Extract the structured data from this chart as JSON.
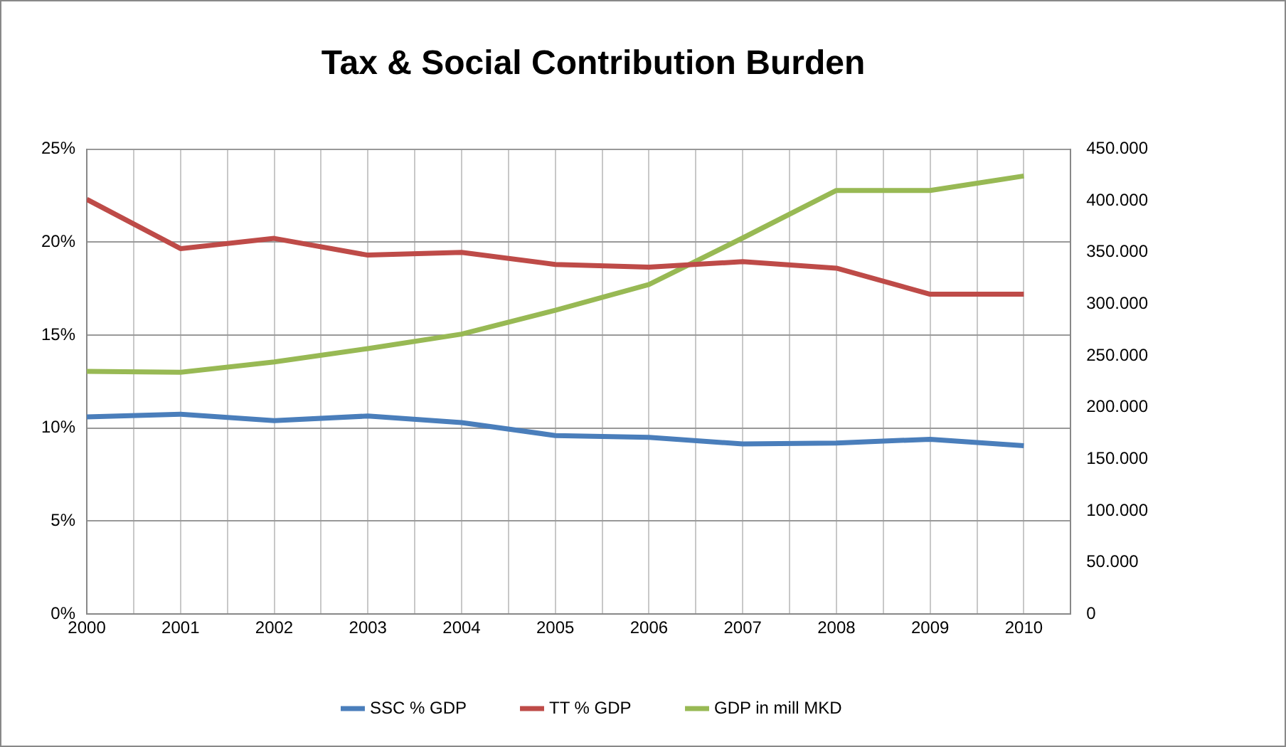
{
  "chart_data": {
    "type": "line",
    "title": "Tax & Social Contribution Burden",
    "x": [
      2000,
      2001,
      2002,
      2003,
      2004,
      2005,
      2006,
      2007,
      2008,
      2009,
      2010
    ],
    "series": [
      {
        "name": "SSC % GDP",
        "color": "#4a7ebb",
        "values": [
          10.6,
          10.75,
          10.4,
          10.65,
          10.3,
          9.6,
          9.5,
          9.15,
          9.2,
          9.4,
          9.05
        ]
      },
      {
        "name": "TT % GDP",
        "color": "#be4b48",
        "values": [
          22.3,
          19.65,
          20.2,
          19.3,
          19.45,
          18.8,
          18.65,
          18.95,
          18.6,
          17.2,
          17.2
        ]
      },
      {
        "name": "GDP in mill MKD",
        "color": "#98b954",
        "axis": "y2",
        "values": [
          235000,
          234000,
          244000,
          257000,
          271000,
          294000,
          319000,
          364000,
          410000,
          410000,
          424000
        ]
      }
    ],
    "xlim": [
      2000,
      2010.5
    ],
    "xticks": [
      2000,
      {
        "value": 2000.5,
        "label": null
      },
      2001,
      {
        "value": 2001.5,
        "label": null
      },
      2002,
      {
        "value": 2002.5,
        "label": null
      },
      2003,
      {
        "value": 2003.5,
        "label": null
      },
      2004,
      {
        "value": 2004.5,
        "label": null
      },
      2005,
      {
        "value": 2005.5,
        "label": null
      },
      2006,
      {
        "value": 2006.5,
        "label": null
      },
      2007,
      {
        "value": 2007.5,
        "label": null
      },
      2008,
      {
        "value": 2008.5,
        "label": null
      },
      2009,
      {
        "value": 2009.5,
        "label": null
      },
      2010,
      {
        "value": 2010.5,
        "label": null
      }
    ],
    "ylim": [
      0,
      25
    ],
    "yticks": [
      {
        "value": 0,
        "label": "0%"
      },
      {
        "value": 5,
        "label": "5%"
      },
      {
        "value": 10,
        "label": "10%"
      },
      {
        "value": 15,
        "label": "15%"
      },
      {
        "value": 20,
        "label": "20%"
      },
      {
        "value": 25,
        "label": "25%"
      }
    ],
    "y2lim": [
      0,
      450000
    ],
    "y2ticks": [
      0,
      {
        "value": 50000,
        "label": "50.000"
      },
      {
        "value": 100000,
        "label": "100.000"
      },
      {
        "value": 150000,
        "label": "150.000"
      },
      {
        "value": 200000,
        "label": "200.000"
      },
      {
        "value": 250000,
        "label": "250.000"
      },
      {
        "value": 300000,
        "label": "300.000"
      },
      {
        "value": 350000,
        "label": "350.000"
      },
      {
        "value": 400000,
        "label": "400.000"
      },
      {
        "value": 450000,
        "label": "450.000"
      }
    ],
    "grid": true,
    "legend": "bottom",
    "marker": "none",
    "line_style": "solid"
  }
}
